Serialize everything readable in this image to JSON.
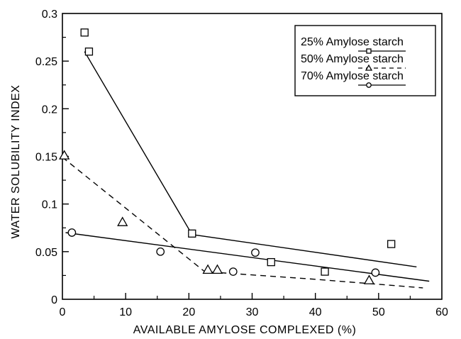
{
  "chart_data": {
    "type": "scatter",
    "title": "",
    "xlabel": "AVAILABLE AMYLOSE COMPLEXED (%)",
    "ylabel": "WATER SOLUBILITY INDEX",
    "xlim": [
      0,
      60
    ],
    "ylim": [
      0,
      0.3
    ],
    "xticks": [
      "0",
      "10",
      "20",
      "30",
      "40",
      "50",
      "60"
    ],
    "yticks": [
      "0",
      "0.05",
      "0.1",
      "0.15",
      "0.2",
      "0.25",
      "0.3"
    ],
    "grid": false,
    "legend": "top-right",
    "series": [
      {
        "name": "25% Amylose starch",
        "marker": "square",
        "line_style": "solid",
        "points": [
          [
            3.5,
            0.28
          ],
          [
            4.2,
            0.26
          ],
          [
            20.5,
            0.069
          ],
          [
            33,
            0.039
          ],
          [
            41.5,
            0.029
          ],
          [
            52,
            0.058
          ]
        ],
        "fit": [
          [
            3.5,
            0.26
          ],
          [
            20.5,
            0.068
          ],
          [
            56,
            0.034
          ]
        ]
      },
      {
        "name": "50% Amylose starch",
        "marker": "triangle",
        "line_style": "dashed",
        "points": [
          [
            0.3,
            0.151
          ],
          [
            9.5,
            0.081
          ],
          [
            23,
            0.031
          ],
          [
            24.5,
            0.031
          ],
          [
            48.5,
            0.02
          ]
        ],
        "fit": [
          [
            0,
            0.149
          ],
          [
            22.5,
            0.029
          ],
          [
            40,
            0.021
          ],
          [
            57,
            0.012
          ]
        ]
      },
      {
        "name": "70% Amylose starch",
        "marker": "circle",
        "line_style": "solid",
        "points": [
          [
            1.5,
            0.07
          ],
          [
            15.5,
            0.05
          ],
          [
            27,
            0.029
          ],
          [
            30.5,
            0.049
          ],
          [
            49.5,
            0.028
          ]
        ],
        "fit": [
          [
            0.5,
            0.07
          ],
          [
            58,
            0.019
          ]
        ]
      }
    ]
  }
}
